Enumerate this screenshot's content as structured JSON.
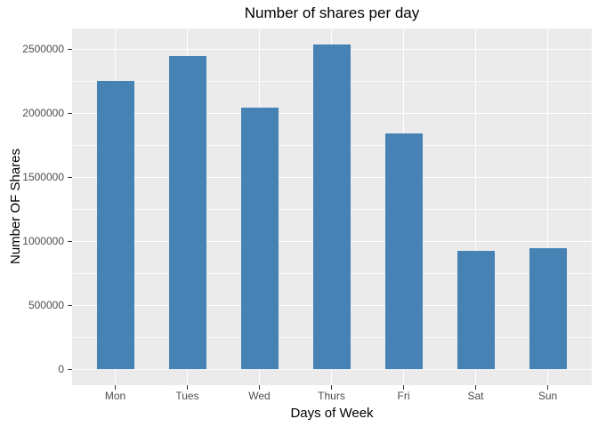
{
  "chart_data": {
    "type": "bar",
    "title": "Number of shares per day",
    "xlabel": "Days of Week",
    "ylabel": "Number OF Shares",
    "categories": [
      "Mon",
      "Tues",
      "Wed",
      "Thurs",
      "Fri",
      "Sat",
      "Sun"
    ],
    "values": [
      2253000,
      2448000,
      2045000,
      2538000,
      1844000,
      927000,
      948000
    ],
    "yticks": [
      0,
      500000,
      1000000,
      1500000,
      2000000,
      2500000
    ],
    "ytick_labels": [
      "0",
      "500000",
      "1000000",
      "1500000",
      "2000000",
      "2500000"
    ],
    "ylim": [
      -121500,
      2662500
    ],
    "grid": "major-and-minor-horizontal, vertical-at-categories",
    "legend": "none",
    "colors": {
      "bar_fill": "#4682B4",
      "panel_background": "#EBEBEB",
      "gridline": "#FFFFFF",
      "tick_label": "#4D4D4D",
      "tick_mark": "#333333",
      "text": "#000000",
      "figure_background": "#FFFFFF"
    }
  }
}
